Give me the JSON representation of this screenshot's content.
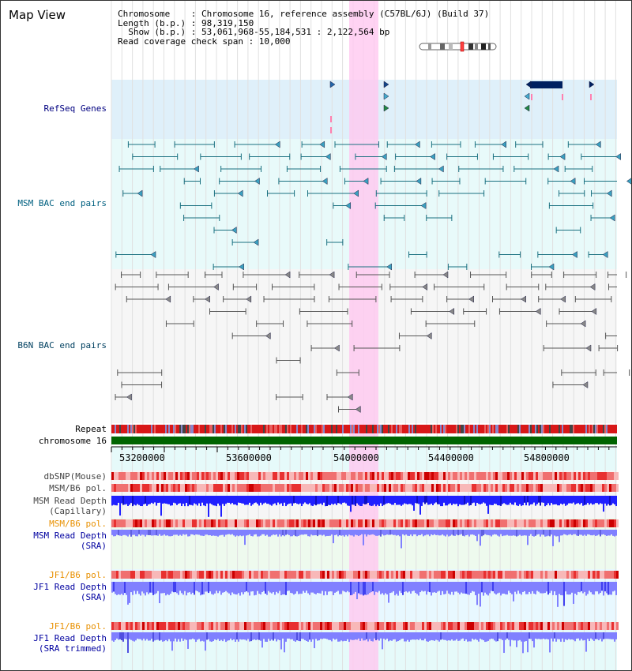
{
  "title": "Map View",
  "info": {
    "chromosome_line": "Chromosome    : Chromosome 16, reference assembly (C57BL/6J) (Build 37)",
    "length_line": "Length (b.p.) : 98,319,150",
    "show_line": "  Show (b.p.) : 53,061,968-55,184,531 : 2,122,564 bp",
    "coverage_line": "Read coverage check span : 10,000"
  },
  "tracks": {
    "refseq": "RefSeq Genes",
    "msm_bac": "MSM BAC end pairs",
    "b6n_bac": "B6N BAC end pairs",
    "repeat": "Repeat",
    "chromosome": "chromosome 16",
    "dbsnp": "dbSNP(Mouse)",
    "msm_b6_pol_1": "MSM/B6 pol.",
    "msm_read_depth_cap_1": "MSM Read Depth",
    "msm_read_depth_cap_2": "(Capillary)",
    "msm_b6_pol_2": "MSM/B6 pol.",
    "msm_read_depth_sra_1": "MSM Read Depth",
    "msm_read_depth_sra_2": "(SRA)",
    "jf1_b6_pol_1": "JF1/B6 pol.",
    "jf1_read_depth_sra_1": "JF1 Read Depth",
    "jf1_read_depth_sra_2": "(SRA)",
    "jf1_b6_pol_2": "JF1/B6 pol.",
    "jf1_read_depth_trim_1": "JF1 Read Depth",
    "jf1_read_depth_trim_2": "(SRA trimmed)"
  },
  "axis": {
    "ticks": [
      "53200000",
      "53600000",
      "54000000",
      "54400000",
      "54800000"
    ]
  },
  "colors": {
    "refseq_label": "#000080",
    "msm_bac_label": "#006080",
    "b6n_label": "#004060",
    "pol_label_orange": "#e89000",
    "depth_label_blue": "#0000a0",
    "highlight": "#ffc8f0",
    "chromosome_bar": "#006400",
    "depth_dark": "#2020ff",
    "depth_light": "#8080ff"
  }
}
